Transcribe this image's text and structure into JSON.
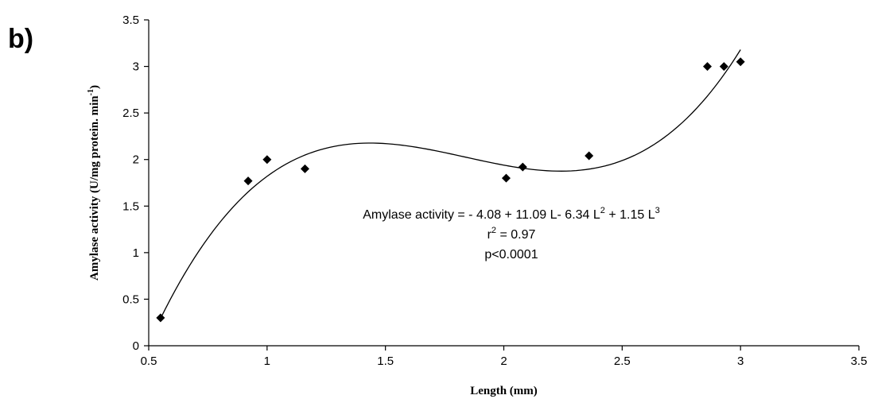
{
  "panel_label": "b)",
  "chart_data": {
    "type": "scatter",
    "xlabel": "Length (mm)",
    "ylabel_main": "Amylase activity  (U/mg protein. min",
    "ylabel_sup": "-1",
    "ylabel_close": ")",
    "xlim": [
      0.5,
      3.5
    ],
    "ylim": [
      0,
      3.5
    ],
    "x_ticks": [
      0.5,
      1,
      1.5,
      2,
      2.5,
      3,
      3.5
    ],
    "x_tick_labels": [
      "0.5",
      "1",
      "1.5",
      "2",
      "2.5",
      "3",
      "3.5"
    ],
    "y_ticks": [
      0,
      0.5,
      1,
      1.5,
      2,
      2.5,
      3,
      3.5
    ],
    "y_tick_labels": [
      "0",
      "0.5",
      "1",
      "1.5",
      "2",
      "2.5",
      "3",
      "3.5"
    ],
    "grid": false,
    "points": [
      {
        "x": 0.55,
        "y": 0.3
      },
      {
        "x": 0.92,
        "y": 1.77
      },
      {
        "x": 1.0,
        "y": 2.0
      },
      {
        "x": 1.16,
        "y": 1.9
      },
      {
        "x": 2.01,
        "y": 1.8
      },
      {
        "x": 2.08,
        "y": 1.92
      },
      {
        "x": 2.36,
        "y": 2.04
      },
      {
        "x": 2.86,
        "y": 3.0
      },
      {
        "x": 2.93,
        "y": 3.0
      },
      {
        "x": 3.0,
        "y": 3.05
      }
    ],
    "fit": {
      "coefficients": [
        -4.08,
        11.09,
        -6.34,
        1.15
      ],
      "x_range": [
        0.55,
        3.0
      ]
    },
    "annotations": [
      {
        "line": "equation",
        "text": "Amylase activity = - 4.08 + 11.09 L- 6.34 L",
        "sup1": "2",
        "mid": " + 1.15 L",
        "sup2": "3"
      },
      {
        "line": "r2",
        "text": "r",
        "sup": "2",
        "rest": " = 0.97"
      },
      {
        "line": "p",
        "text": "p<0.0001"
      }
    ],
    "marker_color": "#000000",
    "line_color": "#000000"
  }
}
